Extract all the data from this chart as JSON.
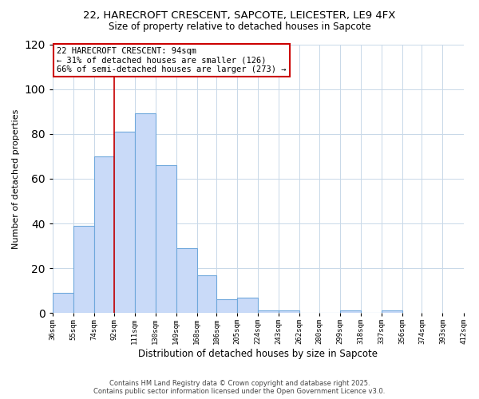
{
  "title": "22, HARECROFT CRESCENT, SAPCOTE, LEICESTER, LE9 4FX",
  "subtitle": "Size of property relative to detached houses in Sapcote",
  "xlabel": "Distribution of detached houses by size in Sapcote",
  "ylabel": "Number of detached properties",
  "bar_values": [
    9,
    39,
    70,
    81,
    89,
    66,
    29,
    17,
    6,
    7,
    1,
    1,
    0,
    0,
    1,
    0,
    1
  ],
  "bin_labels": [
    "36sqm",
    "55sqm",
    "74sqm",
    "92sqm",
    "111sqm",
    "130sqm",
    "149sqm",
    "168sqm",
    "186sqm",
    "205sqm",
    "224sqm",
    "243sqm",
    "262sqm",
    "280sqm",
    "299sqm",
    "318sqm",
    "337sqm",
    "356sqm",
    "374sqm",
    "393sqm",
    "412sqm"
  ],
  "bin_edges": [
    36,
    55,
    74,
    92,
    111,
    130,
    149,
    168,
    186,
    205,
    224,
    243,
    262,
    280,
    299,
    318,
    337,
    356,
    374,
    393,
    412
  ],
  "bar_color": "#c9daf8",
  "bar_edge_color": "#6fa8dc",
  "vline_x": 92,
  "vline_color": "#cc0000",
  "ylim": [
    0,
    120
  ],
  "yticks": [
    0,
    20,
    40,
    60,
    80,
    100,
    120
  ],
  "annotation_title": "22 HARECROFT CRESCENT: 94sqm",
  "annotation_line1": "← 31% of detached houses are smaller (126)",
  "annotation_line2": "66% of semi-detached houses are larger (273) →",
  "annotation_box_color": "#ffffff",
  "annotation_box_edge": "#cc0000",
  "footer1": "Contains HM Land Registry data © Crown copyright and database right 2025.",
  "footer2": "Contains public sector information licensed under the Open Government Licence v3.0.",
  "background_color": "#ffffff",
  "grid_color": "#c8d8e8"
}
